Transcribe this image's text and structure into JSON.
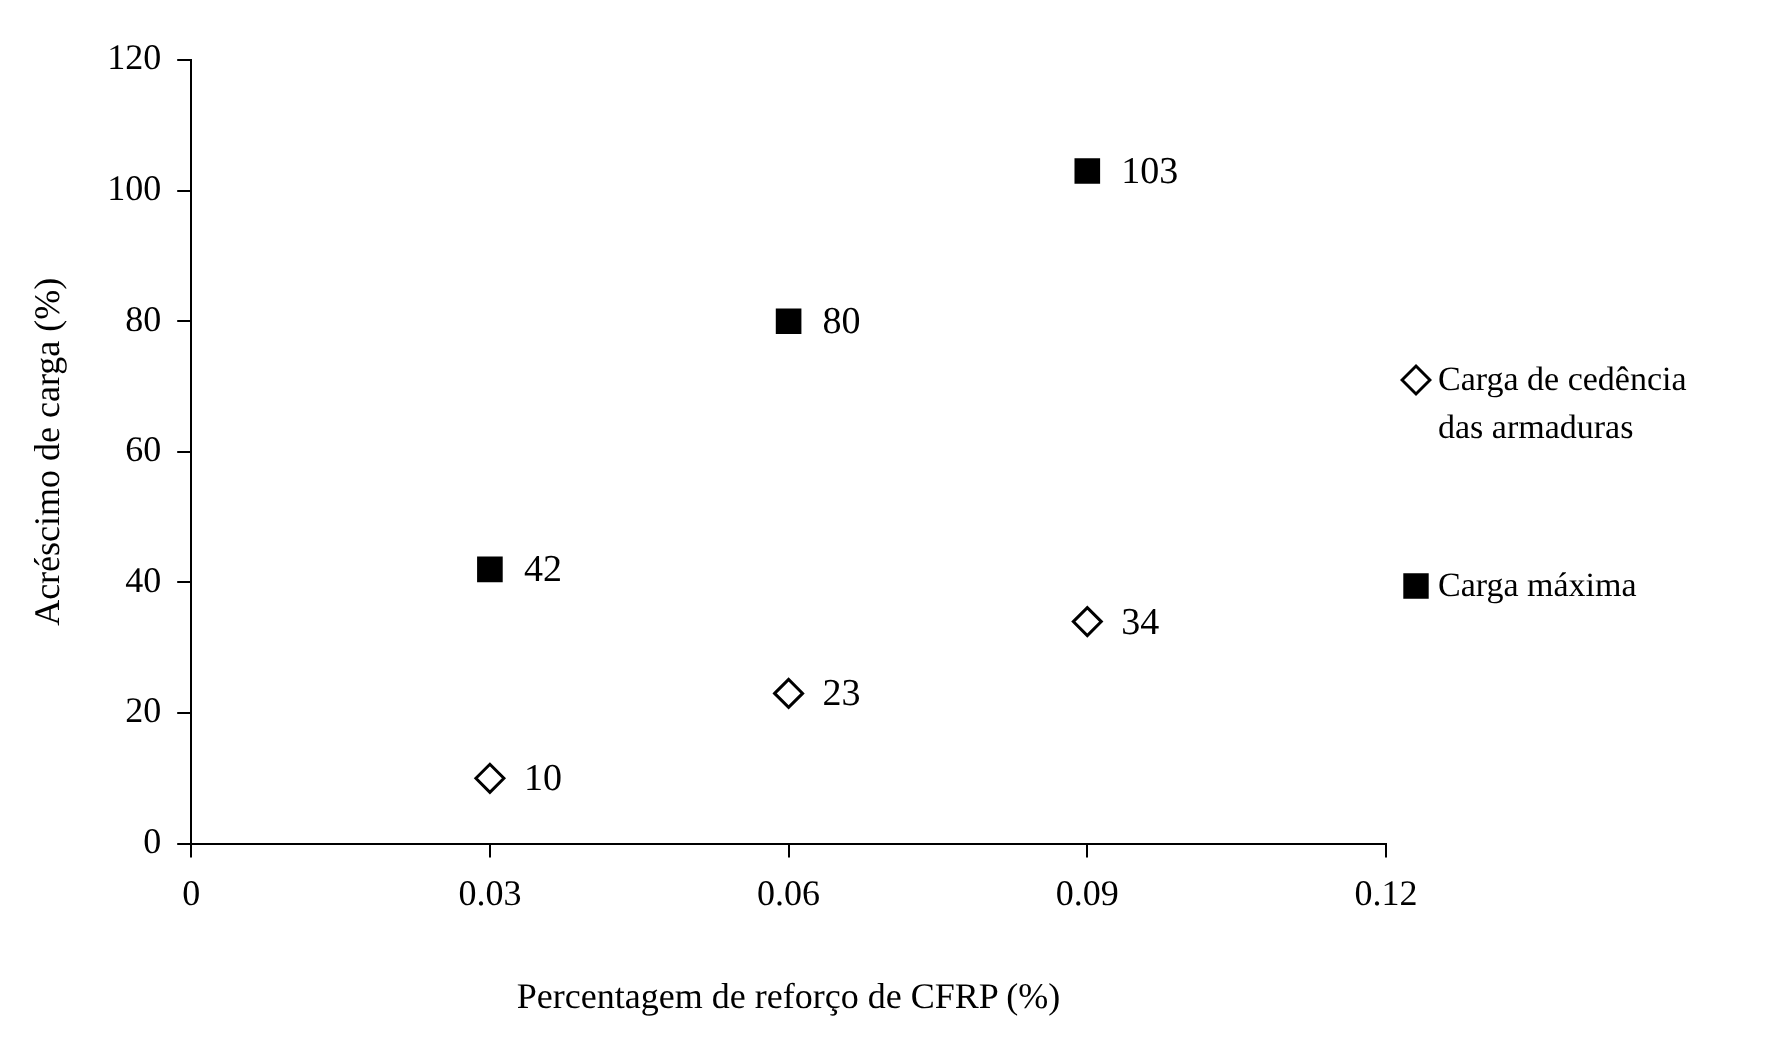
{
  "chart_data": {
    "type": "scatter",
    "xlabel": "Percentagem de reforço de CFRP (%)",
    "ylabel": "Acréscimo de carga (%)",
    "xlim": [
      0,
      0.12
    ],
    "xticks": [
      0,
      0.03,
      0.06,
      0.09,
      0.12
    ],
    "ylim": [
      0,
      120
    ],
    "yticks": [
      0,
      20,
      40,
      60,
      80,
      100,
      120
    ],
    "grid": false,
    "legend": "right",
    "data_labels": true,
    "series": [
      {
        "name": "Carga de cedência das armaduras",
        "color": "#000000",
        "marker": "diamond",
        "x": [
          0.03,
          0.06,
          0.09
        ],
        "values": [
          10,
          23,
          34
        ]
      },
      {
        "name": "Carga máxima",
        "color": "#000000",
        "marker": "square",
        "x": [
          0.03,
          0.06,
          0.09
        ],
        "values": [
          42,
          80,
          103
        ]
      }
    ]
  }
}
